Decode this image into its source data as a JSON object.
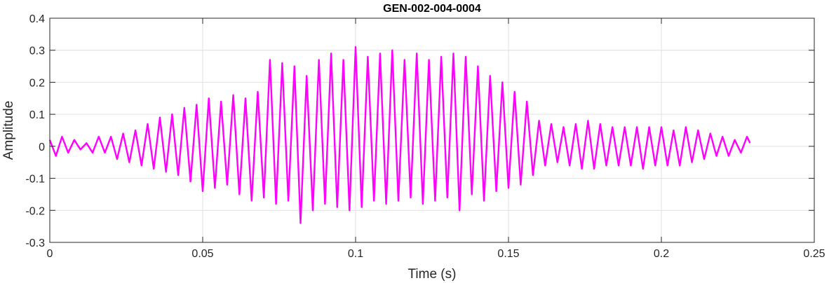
{
  "chart_data": {
    "type": "line",
    "title": "GEN-002-004-0004",
    "xlabel": "Time (s)",
    "ylabel": "Amplitude",
    "xlim": [
      0,
      0.25
    ],
    "ylim": [
      -0.3,
      0.4
    ],
    "x_ticks": [
      0,
      0.05,
      0.1,
      0.15,
      0.2,
      0.25
    ],
    "x_tick_labels": [
      "0",
      "0.05",
      "0.1",
      "0.15",
      "0.2",
      "0.25"
    ],
    "y_ticks": [
      -0.3,
      -0.2,
      -0.1,
      0,
      0.1,
      0.2,
      0.3,
      0.4
    ],
    "y_tick_labels": [
      "-0.3",
      "-0.2",
      "-0.1",
      "0",
      "0.1",
      "0.2",
      "0.3",
      "0.4"
    ],
    "grid": true,
    "box": true,
    "line_color": "#ff00ff",
    "series": [
      {
        "x": [
          0,
          0.002,
          0.004,
          0.006,
          0.008,
          0.01,
          0.012,
          0.014,
          0.016,
          0.018,
          0.02,
          0.022,
          0.024,
          0.026,
          0.028,
          0.03,
          0.032,
          0.034,
          0.036,
          0.038,
          0.04,
          0.042,
          0.044,
          0.046,
          0.048,
          0.05,
          0.052,
          0.054,
          0.056,
          0.058,
          0.06,
          0.062,
          0.064,
          0.066,
          0.068,
          0.07,
          0.072,
          0.074,
          0.076,
          0.078,
          0.08,
          0.082,
          0.084,
          0.086,
          0.088,
          0.09,
          0.092,
          0.094,
          0.096,
          0.098,
          0.1,
          0.102,
          0.104,
          0.106,
          0.108,
          0.11,
          0.112,
          0.114,
          0.116,
          0.118,
          0.12,
          0.122,
          0.124,
          0.126,
          0.128,
          0.13,
          0.132,
          0.134,
          0.136,
          0.138,
          0.14,
          0.142,
          0.144,
          0.146,
          0.148,
          0.15,
          0.152,
          0.154,
          0.156,
          0.158,
          0.16,
          0.162,
          0.164,
          0.166,
          0.168,
          0.17,
          0.172,
          0.174,
          0.176,
          0.178,
          0.18,
          0.182,
          0.184,
          0.186,
          0.188,
          0.19,
          0.192,
          0.194,
          0.196,
          0.198,
          0.2,
          0.202,
          0.204,
          0.206,
          0.208,
          0.21,
          0.212,
          0.214,
          0.216,
          0.218,
          0.22,
          0.222,
          0.224,
          0.226,
          0.228,
          0.229
        ],
        "y": [
          0.02,
          -0.03,
          0.03,
          -0.02,
          0.02,
          -0.01,
          0.01,
          -0.02,
          0.03,
          -0.02,
          0.03,
          -0.04,
          0.04,
          -0.05,
          0.05,
          -0.06,
          0.07,
          -0.07,
          0.09,
          -0.08,
          0.1,
          -0.09,
          0.12,
          -0.11,
          0.13,
          -0.14,
          0.15,
          -0.13,
          0.14,
          -0.12,
          0.16,
          -0.15,
          0.15,
          -0.17,
          0.17,
          -0.16,
          0.27,
          -0.18,
          0.26,
          -0.17,
          0.25,
          -0.24,
          0.22,
          -0.2,
          0.27,
          -0.18,
          0.29,
          -0.19,
          0.27,
          -0.2,
          0.31,
          -0.19,
          0.28,
          -0.17,
          0.29,
          -0.18,
          0.3,
          -0.17,
          0.27,
          -0.16,
          0.29,
          -0.18,
          0.27,
          -0.17,
          0.28,
          -0.16,
          0.29,
          -0.2,
          0.28,
          -0.15,
          0.25,
          -0.17,
          0.22,
          -0.14,
          0.2,
          -0.13,
          0.17,
          -0.12,
          0.14,
          -0.09,
          0.08,
          -0.06,
          0.07,
          -0.05,
          0.06,
          -0.06,
          0.07,
          -0.07,
          0.08,
          -0.07,
          0.07,
          -0.06,
          0.06,
          -0.06,
          0.06,
          -0.06,
          0.06,
          -0.07,
          0.06,
          -0.06,
          0.06,
          -0.06,
          0.05,
          -0.06,
          0.06,
          -0.05,
          0.05,
          -0.04,
          0.04,
          -0.03,
          0.03,
          -0.03,
          0.02,
          -0.02,
          0.03,
          0.01
        ]
      }
    ]
  }
}
